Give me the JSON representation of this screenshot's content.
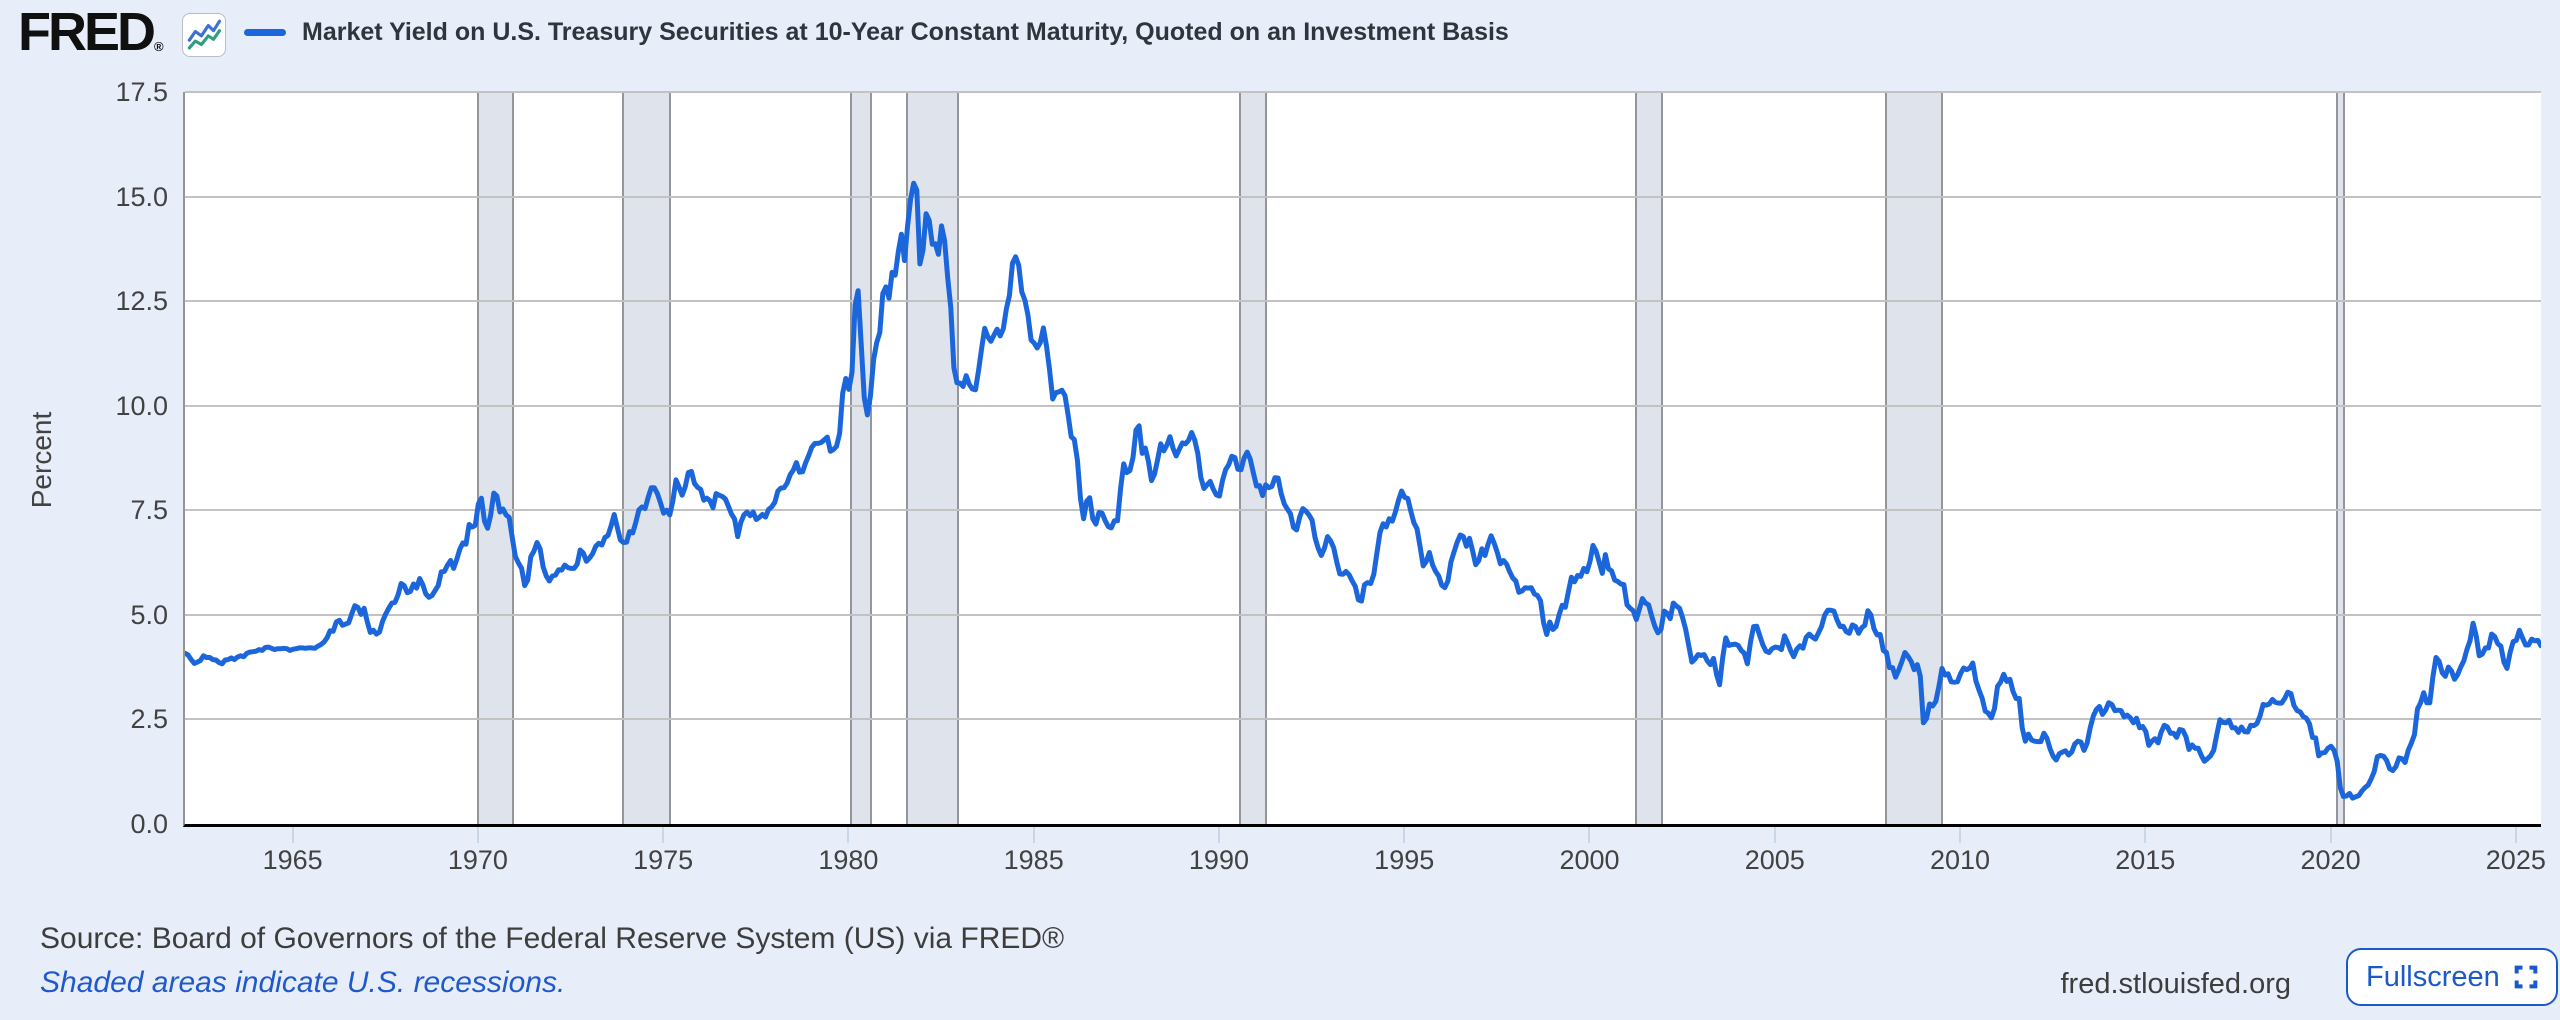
{
  "header": {
    "logo_text": "FRED",
    "logo_registered": "®",
    "legend": {
      "series_label": "Market Yield on U.S. Treasury Securities at 10-Year Constant Maturity, Quoted on an Investment Basis"
    }
  },
  "footer": {
    "source": "Source: Board of Governors of the Federal Reserve System (US) via FRED®",
    "recession_note": "Shaded areas indicate U.S. recessions.",
    "site_url": "fred.stlouisfed.org",
    "fullscreen_label": "Fullscreen"
  },
  "colors": {
    "page_background": "#e8eef9",
    "plot_background": "#ffffff",
    "line": "#1c66dc",
    "gridline": "#c2c2c2",
    "recession_band_fill": "#dfe3ec",
    "recession_band_border": "#94969c",
    "axis_text": "#424242",
    "link_blue": "#2059cc",
    "button_blue": "#1a5ac8"
  },
  "chart_data": {
    "type": "line",
    "title": "Market Yield on U.S. Treasury Securities at 10-Year Constant Maturity, Quoted on an Investment Basis",
    "ylabel": "Percent",
    "ylim": [
      0,
      17.5
    ],
    "ytick_step": 2.5,
    "yticks": [
      0.0,
      2.5,
      5.0,
      7.5,
      10.0,
      12.5,
      15.0,
      17.5
    ],
    "xticks": [
      1965,
      1970,
      1975,
      1980,
      1985,
      1990,
      1995,
      2000,
      2005,
      2010,
      2015,
      2020,
      2025
    ],
    "frequency": "monthly",
    "start": "1962-01",
    "end": "2025-08",
    "x_start": 1962.0,
    "unit": "percent",
    "legend_position": "top",
    "grid": true,
    "line_color": "#1c66dc",
    "recessions": [
      [
        1969.92,
        1970.92
      ],
      [
        1973.83,
        1975.17
      ],
      [
        1980.0,
        1980.58
      ],
      [
        1981.5,
        1982.92
      ],
      [
        1990.5,
        1991.25
      ],
      [
        2001.17,
        2001.92
      ],
      [
        2007.92,
        2009.5
      ],
      [
        2020.08,
        2020.33
      ]
    ],
    "values": [
      4.08,
      4.04,
      3.93,
      3.84,
      3.87,
      3.91,
      4.02,
      3.98,
      3.98,
      3.93,
      3.92,
      3.86,
      3.83,
      3.92,
      3.93,
      3.97,
      3.93,
      3.99,
      4.02,
      4.0,
      4.08,
      4.11,
      4.12,
      4.13,
      4.17,
      4.15,
      4.22,
      4.23,
      4.2,
      4.17,
      4.19,
      4.19,
      4.2,
      4.19,
      4.15,
      4.18,
      4.19,
      4.21,
      4.21,
      4.2,
      4.21,
      4.21,
      4.2,
      4.25,
      4.29,
      4.35,
      4.45,
      4.62,
      4.61,
      4.83,
      4.87,
      4.75,
      4.78,
      4.81,
      5.02,
      5.22,
      5.18,
      5.01,
      5.16,
      4.84,
      4.58,
      4.63,
      4.54,
      4.59,
      4.85,
      5.02,
      5.16,
      5.28,
      5.3,
      5.48,
      5.75,
      5.7,
      5.53,
      5.56,
      5.74,
      5.64,
      5.87,
      5.72,
      5.5,
      5.42,
      5.46,
      5.58,
      5.7,
      6.03,
      6.04,
      6.19,
      6.3,
      6.11,
      6.32,
      6.57,
      6.72,
      6.69,
      7.16,
      7.1,
      7.14,
      7.65,
      7.79,
      7.24,
      7.07,
      7.39,
      7.91,
      7.84,
      7.46,
      7.53,
      7.39,
      7.33,
      6.84,
      6.39,
      6.24,
      6.11,
      5.7,
      5.83,
      6.39,
      6.52,
      6.73,
      6.58,
      6.14,
      5.93,
      5.81,
      5.93,
      5.95,
      6.08,
      6.07,
      6.19,
      6.13,
      6.11,
      6.11,
      6.21,
      6.55,
      6.48,
      6.28,
      6.36,
      6.46,
      6.64,
      6.71,
      6.67,
      6.85,
      6.9,
      7.13,
      7.4,
      7.09,
      6.79,
      6.73,
      6.74,
      6.99,
      6.96,
      7.21,
      7.51,
      7.58,
      7.54,
      7.81,
      8.04,
      8.04,
      7.9,
      7.68,
      7.43,
      7.5,
      7.39,
      7.73,
      8.23,
      8.06,
      7.86,
      8.06,
      8.4,
      8.43,
      8.14,
      8.05,
      8.0,
      7.74,
      7.79,
      7.73,
      7.56,
      7.9,
      7.86,
      7.83,
      7.77,
      7.59,
      7.41,
      7.29,
      6.87,
      7.21,
      7.39,
      7.46,
      7.37,
      7.46,
      7.28,
      7.33,
      7.4,
      7.34,
      7.52,
      7.58,
      7.69,
      7.96,
      8.03,
      8.04,
      8.15,
      8.35,
      8.46,
      8.64,
      8.41,
      8.42,
      8.64,
      8.81,
      9.01,
      9.1,
      9.1,
      9.12,
      9.18,
      9.25,
      8.91,
      8.95,
      9.03,
      9.33,
      10.3,
      10.65,
      10.39,
      10.8,
      12.41,
      12.75,
      11.47,
      10.18,
      9.78,
      10.25,
      11.1,
      11.51,
      11.75,
      12.68,
      12.84,
      12.57,
      13.19,
      13.12,
      13.68,
      14.1,
      13.47,
      14.28,
      14.94,
      15.32,
      15.15,
      13.39,
      13.72,
      14.59,
      14.43,
      13.86,
      13.87,
      13.62,
      14.3,
      13.95,
      13.06,
      12.34,
      10.91,
      10.55,
      10.54,
      10.46,
      10.72,
      10.51,
      10.4,
      10.38,
      10.85,
      11.38,
      11.85,
      11.65,
      11.54,
      11.69,
      11.83,
      11.67,
      11.84,
      12.32,
      12.63,
      13.41,
      13.56,
      13.36,
      12.72,
      12.52,
      12.16,
      11.57,
      11.5,
      11.38,
      11.51,
      11.86,
      11.43,
      10.85,
      10.16,
      10.31,
      10.33,
      10.37,
      10.24,
      9.78,
      9.26,
      9.19,
      8.7,
      7.78,
      7.3,
      7.71,
      7.8,
      7.3,
      7.17,
      7.45,
      7.43,
      7.25,
      7.11,
      7.08,
      7.25,
      7.25,
      8.02,
      8.61,
      8.4,
      8.45,
      8.76,
      9.42,
      9.52,
      8.86,
      8.99,
      8.67,
      8.21,
      8.37,
      8.72,
      9.09,
      8.92,
      9.06,
      9.26,
      8.98,
      8.8,
      8.96,
      9.11,
      9.09,
      9.17,
      9.36,
      9.18,
      8.86,
      8.28,
      8.02,
      8.11,
      8.19,
      8.01,
      7.87,
      7.84,
      8.21,
      8.47,
      8.59,
      8.79,
      8.76,
      8.48,
      8.47,
      8.75,
      8.89,
      8.72,
      8.39,
      8.08,
      8.09,
      7.85,
      8.11,
      8.04,
      8.07,
      8.28,
      8.27,
      7.9,
      7.65,
      7.53,
      7.42,
      7.09,
      7.03,
      7.34,
      7.54,
      7.48,
      7.39,
      7.26,
      6.84,
      6.59,
      6.42,
      6.59,
      6.87,
      6.77,
      6.6,
      6.26,
      5.98,
      5.97,
      6.04,
      5.96,
      5.81,
      5.68,
      5.36,
      5.33,
      5.72,
      5.77,
      5.75,
      5.97,
      6.48,
      6.97,
      7.18,
      7.1,
      7.3,
      7.24,
      7.46,
      7.74,
      7.96,
      7.81,
      7.78,
      7.47,
      7.2,
      7.06,
      6.63,
      6.17,
      6.28,
      6.49,
      6.2,
      6.04,
      5.93,
      5.71,
      5.65,
      5.81,
      6.27,
      6.51,
      6.74,
      6.91,
      6.87,
      6.64,
      6.83,
      6.53,
      6.2,
      6.3,
      6.58,
      6.42,
      6.69,
      6.89,
      6.71,
      6.49,
      6.22,
      6.3,
      6.21,
      6.03,
      5.88,
      5.81,
      5.54,
      5.57,
      5.65,
      5.64,
      5.65,
      5.5,
      5.46,
      5.34,
      4.81,
      4.53,
      4.83,
      4.65,
      4.72,
      5.0,
      5.23,
      5.18,
      5.54,
      5.9,
      5.79,
      5.94,
      5.92,
      6.11,
      6.03,
      6.28,
      6.66,
      6.52,
      6.26,
      5.99,
      6.44,
      6.1,
      6.05,
      5.83,
      5.8,
      5.74,
      5.72,
      5.24,
      5.16,
      5.1,
      4.89,
      5.14,
      5.39,
      5.28,
      5.24,
      4.97,
      4.73,
      4.57,
      4.65,
      5.09,
      5.04,
      4.91,
      5.28,
      5.21,
      5.16,
      4.93,
      4.65,
      4.26,
      3.87,
      3.94,
      4.05,
      4.03,
      4.05,
      3.9,
      3.81,
      3.96,
      3.57,
      3.33,
      3.98,
      4.45,
      4.27,
      4.29,
      4.3,
      4.27,
      4.15,
      4.08,
      3.83,
      4.35,
      4.72,
      4.73,
      4.5,
      4.28,
      4.13,
      4.1,
      4.19,
      4.23,
      4.22,
      4.17,
      4.5,
      4.34,
      4.14,
      4.0,
      4.18,
      4.26,
      4.2,
      4.46,
      4.54,
      4.47,
      4.42,
      4.57,
      4.72,
      4.99,
      5.11,
      5.11,
      5.09,
      4.88,
      4.72,
      4.73,
      4.6,
      4.56,
      4.76,
      4.72,
      4.56,
      4.69,
      4.75,
      5.1,
      5.0,
      4.67,
      4.52,
      4.53,
      4.15,
      4.1,
      3.74,
      3.74,
      3.51,
      3.68,
      3.88,
      4.1,
      4.01,
      3.89,
      3.69,
      3.81,
      3.53,
      2.42,
      2.52,
      2.87,
      2.82,
      2.93,
      3.29,
      3.72,
      3.56,
      3.59,
      3.4,
      3.39,
      3.4,
      3.59,
      3.73,
      3.69,
      3.73,
      3.85,
      3.42,
      3.2,
      3.01,
      2.7,
      2.65,
      2.54,
      2.76,
      3.29,
      3.39,
      3.58,
      3.41,
      3.46,
      3.17,
      3.0,
      3.0,
      2.3,
      1.98,
      2.15,
      2.01,
      1.98,
      1.97,
      1.97,
      2.17,
      2.05,
      1.8,
      1.62,
      1.53,
      1.68,
      1.72,
      1.75,
      1.65,
      1.72,
      1.91,
      1.98,
      1.96,
      1.76,
      1.93,
      2.3,
      2.58,
      2.74,
      2.81,
      2.62,
      2.72,
      2.9,
      2.86,
      2.71,
      2.72,
      2.71,
      2.56,
      2.6,
      2.54,
      2.42,
      2.53,
      2.3,
      2.33,
      2.21,
      1.88,
      1.98,
      2.04,
      1.94,
      2.2,
      2.36,
      2.32,
      2.17,
      2.17,
      2.07,
      2.26,
      2.24,
      2.09,
      1.78,
      1.89,
      1.81,
      1.81,
      1.64,
      1.5,
      1.56,
      1.63,
      1.76,
      2.14,
      2.49,
      2.43,
      2.42,
      2.48,
      2.3,
      2.3,
      2.19,
      2.32,
      2.21,
      2.2,
      2.36,
      2.35,
      2.4,
      2.58,
      2.86,
      2.84,
      2.87,
      2.98,
      2.91,
      2.89,
      2.89,
      3.0,
      3.15,
      3.12,
      2.83,
      2.71,
      2.68,
      2.57,
      2.53,
      2.4,
      2.07,
      2.06,
      1.63,
      1.7,
      1.71,
      1.81,
      1.86,
      1.76,
      1.5,
      0.87,
      0.66,
      0.67,
      0.73,
      0.62,
      0.65,
      0.68,
      0.79,
      0.87,
      0.93,
      1.08,
      1.26,
      1.61,
      1.64,
      1.62,
      1.52,
      1.32,
      1.28,
      1.37,
      1.58,
      1.56,
      1.47,
      1.76,
      1.93,
      2.13,
      2.75,
      2.9,
      3.14,
      2.9,
      2.9,
      3.52,
      3.98,
      3.89,
      3.62,
      3.53,
      3.75,
      3.66,
      3.46,
      3.57,
      3.75,
      3.9,
      4.17,
      4.38,
      4.8,
      4.5,
      4.02,
      4.06,
      4.21,
      4.21,
      4.54,
      4.48,
      4.31,
      4.25,
      3.87,
      3.72,
      4.1,
      4.36,
      4.39,
      4.63,
      4.45,
      4.28,
      4.28,
      4.42,
      4.38,
      4.39,
      4.26
    ]
  }
}
